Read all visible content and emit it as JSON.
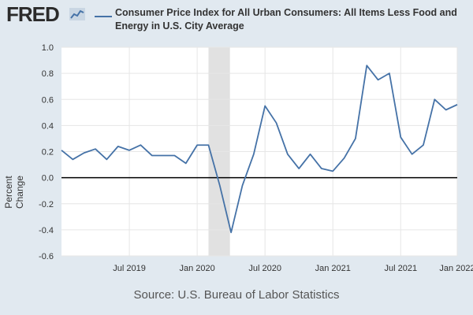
{
  "brand": {
    "name": "FRED"
  },
  "legend": {
    "label": "Consumer Price Index for All Urban Consumers: All Items Less Food and Energy in U.S. City Average",
    "color": "#4572a7"
  },
  "source": "Source: U.S. Bureau of Labor Statistics",
  "chart_data": {
    "type": "line",
    "title": "Consumer Price Index for All Urban Consumers: All Items Less Food and Energy in U.S. City Average",
    "xlabel": "",
    "ylabel": "Percent Change",
    "ylim": [
      -0.6,
      1.0
    ],
    "yticks": [
      1.0,
      0.8,
      0.6,
      0.4,
      0.2,
      0.0,
      -0.2,
      -0.4,
      -0.6
    ],
    "ytick_labels": [
      "1.0",
      "0.8",
      "0.6",
      "0.4",
      "0.2",
      "0.0",
      "-0.2",
      "-0.4",
      "-0.6"
    ],
    "x_range": [
      0,
      35
    ],
    "xticks": [
      {
        "label": "Jul 2019",
        "x": 6
      },
      {
        "label": "Jan 2020",
        "x": 12
      },
      {
        "label": "Jul 2020",
        "x": 18
      },
      {
        "label": "Jan 2021",
        "x": 24
      },
      {
        "label": "Jul 2021",
        "x": 30
      },
      {
        "label": "Jan 2022",
        "x": 35
      }
    ],
    "recession": {
      "start": 13,
      "end": 14.9
    },
    "zero_line": 0,
    "series": [
      {
        "name": "Consumer Price Index for All Urban Consumers: All Items Less Food and Energy in U.S. City Average",
        "color": "#4572a7",
        "x": [
          0,
          1,
          2,
          3,
          4,
          5,
          6,
          7,
          8,
          9,
          10,
          11,
          12,
          13,
          14,
          15,
          16,
          17,
          18,
          19,
          20,
          21,
          22,
          23,
          24,
          25,
          26,
          27,
          28,
          29,
          30,
          31,
          32,
          33,
          34,
          35
        ],
        "values": [
          0.21,
          0.14,
          0.19,
          0.22,
          0.14,
          0.24,
          0.21,
          0.25,
          0.17,
          0.17,
          0.17,
          0.11,
          0.25,
          0.25,
          -0.06,
          -0.42,
          -0.06,
          0.18,
          0.55,
          0.42,
          0.18,
          0.07,
          0.18,
          0.07,
          0.05,
          0.15,
          0.3,
          0.86,
          0.75,
          0.8,
          0.31,
          0.18,
          0.25,
          0.6,
          0.52,
          0.56
        ]
      }
    ]
  }
}
